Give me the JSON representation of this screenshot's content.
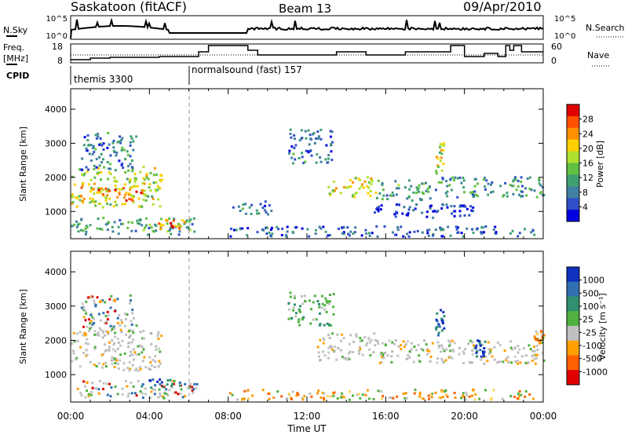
{
  "header": {
    "station": "Saskatoon (fitACF)",
    "beam": "Beam 13",
    "date": "09/Apr/2010"
  },
  "nsky_panel": {
    "left_label": "N.Sky",
    "left_ticks": [
      "10^5",
      "10^0"
    ],
    "right_ticks": [
      "10^5",
      "10^0"
    ],
    "right_label": "N.Search"
  },
  "freq_panel": {
    "left_label_1": "Freq.",
    "left_label_2": "[MHz]",
    "left_ticks": [
      "18",
      "8"
    ],
    "right_ticks": [
      "60",
      "0"
    ],
    "right_label": "Nave"
  },
  "cpid_panel": {
    "label": "CPID",
    "programs": [
      {
        "name": "themis 3300",
        "start_hour": 0
      },
      {
        "name": "normalsound (fast) 157",
        "start_hour": 6
      }
    ]
  },
  "time_axis": {
    "title": "Time UT",
    "tick_labels": [
      "00:00",
      "04:00",
      "08:00",
      "12:00",
      "16:00",
      "20:00",
      "00:00"
    ],
    "tick_hours": [
      0,
      4,
      8,
      12,
      16,
      20,
      24
    ],
    "range_hours": [
      0,
      24
    ]
  },
  "chart_data": [
    {
      "type": "heatmap",
      "name": "power",
      "ylabel": "Slant Range [km]",
      "yticks": [
        1000,
        2000,
        3000,
        4000
      ],
      "ylim": [
        200,
        4600
      ],
      "xlabel": "Time UT",
      "colorbar": {
        "label": "Power [dB]",
        "ticks": [
          "28",
          "24",
          "20",
          "16",
          "12",
          "8",
          "4"
        ],
        "tick_values": [
          28,
          24,
          20,
          16,
          12,
          8,
          4
        ],
        "range": [
          0,
          32
        ],
        "colors": [
          "#0000e0",
          "#3050c8",
          "#4080a0",
          "#40a070",
          "#60c040",
          "#b0e030",
          "#ffd000",
          "#ff9000",
          "#ff5000",
          "#e00000"
        ]
      },
      "regions": [
        {
          "t0": 0.0,
          "t1": 4.6,
          "r0": 1100,
          "r1": 2300,
          "level": 0.55
        },
        {
          "t0": 0.4,
          "t1": 3.6,
          "r0": 1300,
          "r1": 1700,
          "level": 0.8
        },
        {
          "t0": 0.5,
          "t1": 3.3,
          "r0": 2200,
          "r1": 3300,
          "level": 0.25
        },
        {
          "t0": 0.0,
          "t1": 6.4,
          "r0": 300,
          "r1": 800,
          "level": 0.35
        },
        {
          "t0": 4.4,
          "t1": 5.8,
          "r0": 450,
          "r1": 750,
          "level": 0.75
        },
        {
          "t0": 8.2,
          "t1": 10.2,
          "r0": 900,
          "r1": 1300,
          "level": 0.25
        },
        {
          "t0": 8.0,
          "t1": 23.5,
          "r0": 250,
          "r1": 550,
          "level": 0.2
        },
        {
          "t0": 11.0,
          "t1": 13.3,
          "r0": 2400,
          "r1": 3400,
          "level": 0.25
        },
        {
          "t0": 13.0,
          "t1": 15.5,
          "r0": 1400,
          "r1": 2000,
          "level": 0.6
        },
        {
          "t0": 15.5,
          "t1": 18.5,
          "r0": 1300,
          "r1": 1900,
          "level": 0.35
        },
        {
          "t0": 18.5,
          "t1": 19.0,
          "r0": 2100,
          "r1": 3000,
          "level": 0.55
        },
        {
          "t0": 18.6,
          "t1": 24.0,
          "r0": 1400,
          "r1": 2000,
          "level": 0.3
        },
        {
          "t0": 15.0,
          "t1": 20.5,
          "r0": 800,
          "r1": 1200,
          "level": 0.12
        }
      ]
    },
    {
      "type": "heatmap",
      "name": "velocity",
      "ylabel": "Slant Range [km]",
      "yticks": [
        1000,
        2000,
        3000,
        4000
      ],
      "ylim": [
        200,
        4600
      ],
      "xlabel": "Time UT",
      "colorbar": {
        "label": "Velocity [m s⁻¹]",
        "ticks": [
          "1000",
          "500",
          "100",
          "25",
          "-25",
          "-100",
          "-500",
          "-1000"
        ],
        "colors": [
          "#1030c0",
          "#3070b0",
          "#309070",
          "#50b040",
          "#c0c0c0",
          "#ffa000",
          "#ff6000",
          "#e00000"
        ]
      },
      "regions": [
        {
          "t0": 0.0,
          "t1": 4.6,
          "r0": 1100,
          "r1": 2300,
          "class": "gray"
        },
        {
          "t0": 0.5,
          "t1": 3.3,
          "r0": 2200,
          "r1": 3300,
          "class": "mixed"
        },
        {
          "t0": 0.0,
          "t1": 6.4,
          "r0": 300,
          "r1": 800,
          "class": "mixed"
        },
        {
          "t0": 3.5,
          "t1": 5.8,
          "r0": 550,
          "r1": 850,
          "class": "blue"
        },
        {
          "t0": 8.0,
          "t1": 23.5,
          "r0": 250,
          "r1": 550,
          "class": "orange"
        },
        {
          "t0": 11.0,
          "t1": 13.3,
          "r0": 2400,
          "r1": 3400,
          "class": "green"
        },
        {
          "t0": 12.5,
          "t1": 15.5,
          "r0": 1400,
          "r1": 2200,
          "class": "gray"
        },
        {
          "t0": 15.5,
          "t1": 24.0,
          "r0": 1300,
          "r1": 2000,
          "class": "gray"
        },
        {
          "t0": 18.5,
          "t1": 19.0,
          "r0": 2100,
          "r1": 3000,
          "class": "blue"
        },
        {
          "t0": 20.5,
          "t1": 21.0,
          "r0": 1500,
          "r1": 2000,
          "class": "blue"
        },
        {
          "t0": 23.5,
          "t1": 24.0,
          "r0": 1800,
          "r1": 2300,
          "class": "orange"
        }
      ]
    }
  ]
}
